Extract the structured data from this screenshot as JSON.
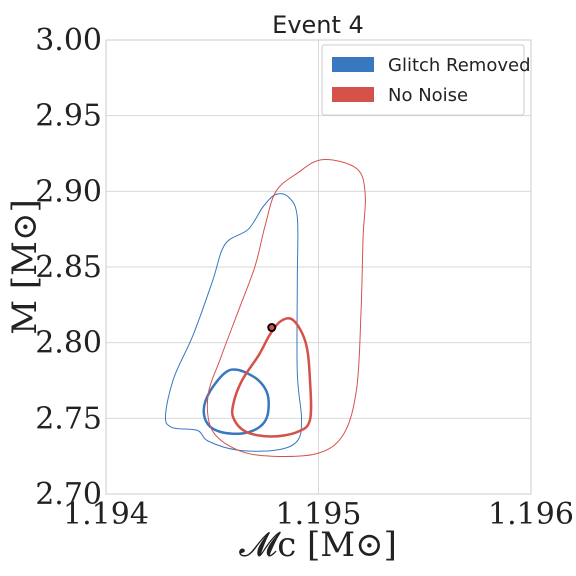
{
  "chart_data": {
    "type": "contour",
    "title": "Event 4",
    "xlabel": "𝓜c [M⊙]",
    "ylabel": "M [M⊙]",
    "xlim": [
      1.194,
      1.196
    ],
    "ylim": [
      2.7,
      3.0
    ],
    "xticks": [
      1.194,
      1.195,
      1.196
    ],
    "xtick_labels": [
      "1.194",
      "1.195",
      "1.196"
    ],
    "yticks": [
      2.7,
      2.75,
      2.8,
      2.85,
      2.9,
      2.95,
      3.0
    ],
    "ytick_labels": [
      "2.70",
      "2.75",
      "2.80",
      "2.85",
      "2.90",
      "2.95",
      "3.00"
    ],
    "grid": true,
    "legend": {
      "placement": "top-right"
    },
    "series": [
      {
        "name": "Glitch Removed",
        "color": "#3878c0",
        "contours": [
          {
            "level": "outer",
            "points": [
              [
                1.19443,
                2.742
              ],
              [
                1.19448,
                2.735
              ],
              [
                1.19462,
                2.729
              ],
              [
                1.1948,
                2.729
              ],
              [
                1.1949,
                2.735
              ],
              [
                1.19492,
                2.75
              ],
              [
                1.1949,
                2.78
              ],
              [
                1.1949,
                2.84
              ],
              [
                1.1949,
                2.883
              ],
              [
                1.19486,
                2.896
              ],
              [
                1.1948,
                2.898
              ],
              [
                1.19474,
                2.89
              ],
              [
                1.19467,
                2.875
              ],
              [
                1.19456,
                2.865
              ],
              [
                1.1945,
                2.84
              ],
              [
                1.19441,
                2.805
              ],
              [
                1.19432,
                2.777
              ],
              [
                1.19428,
                2.752
              ],
              [
                1.19431,
                2.744
              ],
              [
                1.19443,
                2.742
              ]
            ]
          },
          {
            "level": "inner",
            "points": [
              [
                1.19454,
                2.741
              ],
              [
                1.19464,
                2.74
              ],
              [
                1.19472,
                2.744
              ],
              [
                1.19476,
                2.752
              ],
              [
                1.19476,
                2.766
              ],
              [
                1.19471,
                2.776
              ],
              [
                1.19462,
                2.782
              ],
              [
                1.19456,
                2.78
              ],
              [
                1.19449,
                2.768
              ],
              [
                1.19446,
                2.756
              ],
              [
                1.19448,
                2.746
              ],
              [
                1.19454,
                2.741
              ]
            ]
          }
        ]
      },
      {
        "name": "No Noise",
        "color": "#d5524a",
        "contours": [
          {
            "level": "outer",
            "points": [
              [
                1.1945,
                2.742
              ],
              [
                1.19462,
                2.729
              ],
              [
                1.19478,
                2.725
              ],
              [
                1.195,
                2.727
              ],
              [
                1.19512,
                2.74
              ],
              [
                1.19518,
                2.77
              ],
              [
                1.1952,
                2.82
              ],
              [
                1.19521,
                2.87
              ],
              [
                1.19522,
                2.898
              ],
              [
                1.19518,
                2.915
              ],
              [
                1.19502,
                2.921
              ],
              [
                1.1949,
                2.912
              ],
              [
                1.1948,
                2.9
              ],
              [
                1.19475,
                2.878
              ],
              [
                1.1947,
                2.85
              ],
              [
                1.19462,
                2.82
              ],
              [
                1.19454,
                2.79
              ],
              [
                1.19448,
                2.765
              ],
              [
                1.1945,
                2.742
              ]
            ]
          },
          {
            "level": "inner",
            "points": [
              [
                1.1946,
                2.75
              ],
              [
                1.19466,
                2.741
              ],
              [
                1.19478,
                2.738
              ],
              [
                1.1949,
                2.741
              ],
              [
                1.19496,
                2.749
              ],
              [
                1.19496,
                2.775
              ],
              [
                1.19494,
                2.8
              ],
              [
                1.19488,
                2.815
              ],
              [
                1.19482,
                2.814
              ],
              [
                1.19477,
                2.805
              ],
              [
                1.19472,
                2.792
              ],
              [
                1.19464,
                2.775
              ],
              [
                1.1946,
                2.76
              ],
              [
                1.1946,
                2.75
              ]
            ]
          }
        ]
      }
    ],
    "marker": {
      "x": 1.19478,
      "y": 2.81,
      "color": "#d5524a",
      "edge": "#000000"
    }
  }
}
